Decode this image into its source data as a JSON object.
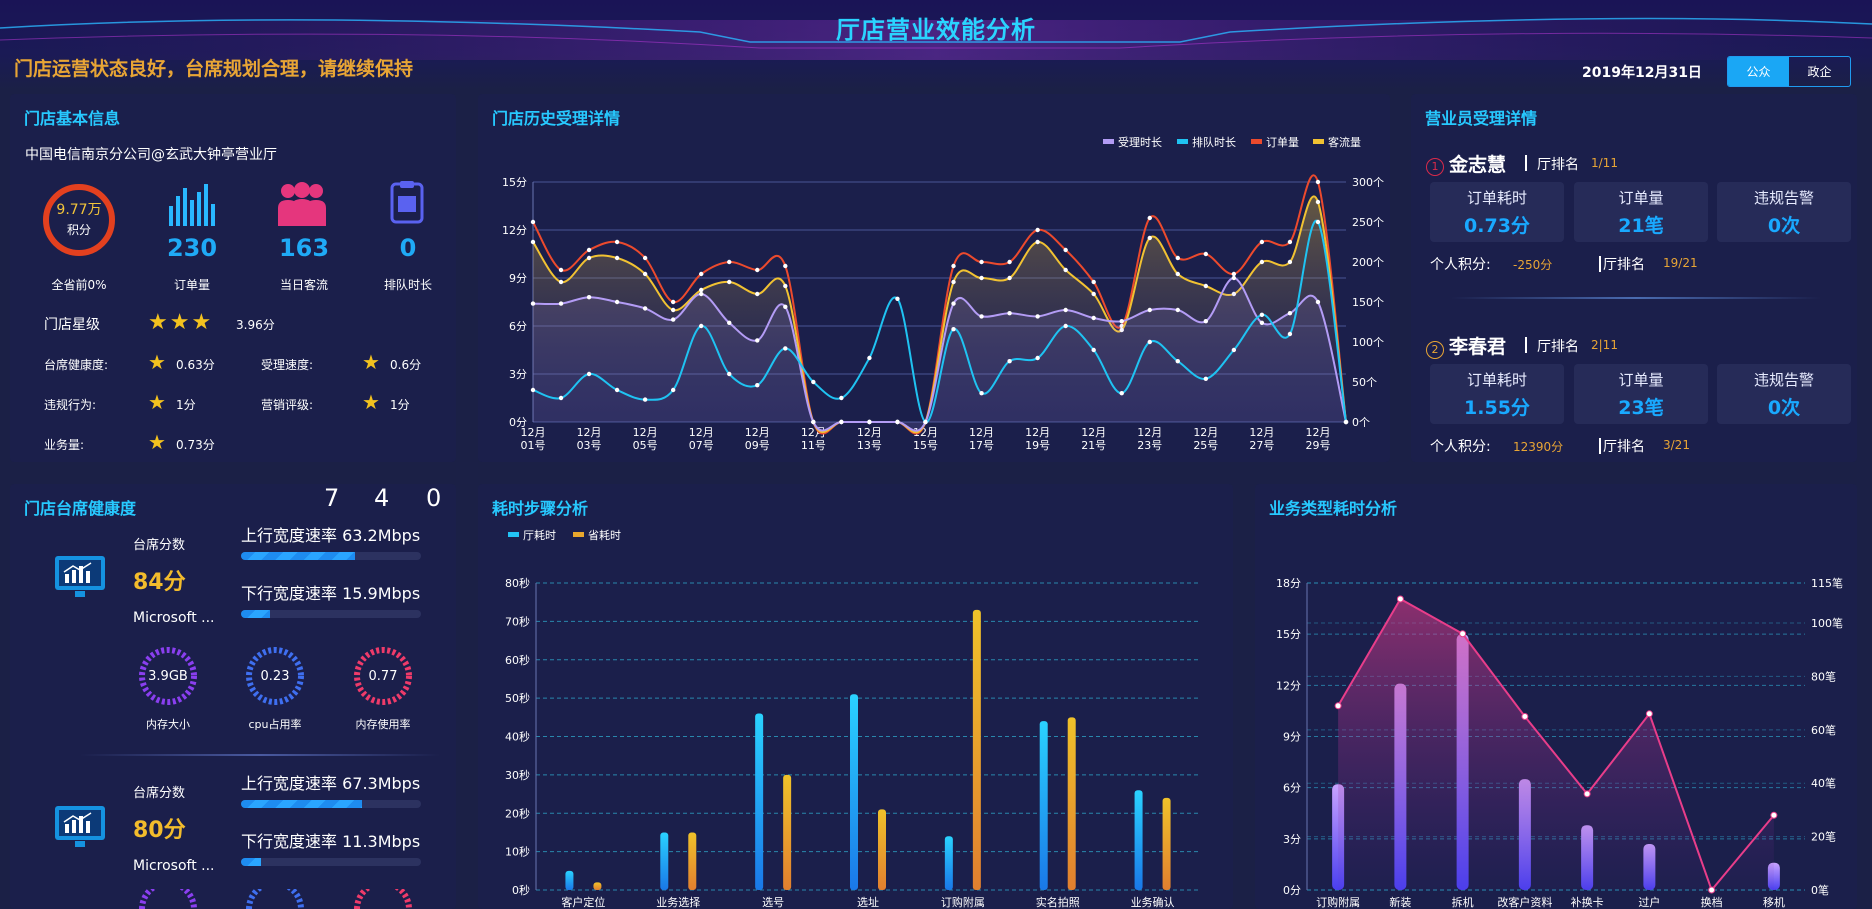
{
  "header": {
    "title": "厅店营业效能分析",
    "notice": "门店运营状态良好，台席规划合理，请继续保持",
    "date": "2019年12月31日",
    "toggle": [
      "公众",
      "政企"
    ],
    "colors": {
      "accent": "#27c9ff",
      "warning": "#e8a535"
    }
  },
  "basic": {
    "title": "门店基本信息",
    "store_name": "中国电信南京分公司@玄武大钟亭营业厅",
    "score": {
      "value": "9.77万",
      "unit": "积分",
      "caption": "全省前0%"
    },
    "stats": [
      {
        "value": "230",
        "label": "订单量",
        "icon": "bar-chart-icon"
      },
      {
        "value": "163",
        "label": "当日客流",
        "icon": "people-icon"
      },
      {
        "value": "0",
        "label": "排队时长",
        "icon": "queue-ticket-icon"
      }
    ],
    "star_label": "门店星级",
    "star_value": "3.96分",
    "stars": 3,
    "metrics": [
      {
        "label": "台席健康度:",
        "value": "0.63分",
        "fill": 0.63
      },
      {
        "label": "受理速度:",
        "value": "0.6分",
        "fill": 0.6
      },
      {
        "label": "违规行为:",
        "value": "1分",
        "fill": 1
      },
      {
        "label": "营销评级:",
        "value": "1分",
        "fill": 1
      },
      {
        "label": "业务量:",
        "value": "0.73分",
        "fill": 0.73
      }
    ]
  },
  "clerks": {
    "title": "营业员受理详情",
    "rank_label": "厅排名",
    "score_label": "个人积分:",
    "items": [
      {
        "index": "1",
        "name": "金志慧",
        "rank": "1/11",
        "tiles": [
          {
            "label": "订单耗时",
            "value": "0.73分"
          },
          {
            "label": "订单量",
            "value": "21笔"
          },
          {
            "label": "违规告警",
            "value": "0次"
          }
        ],
        "score": "-250分",
        "rank2": "19/21"
      },
      {
        "index": "2",
        "name": "李春君",
        "rank": "2|11",
        "tiles": [
          {
            "label": "订单耗时",
            "value": "1.55分"
          },
          {
            "label": "订单量",
            "value": "23笔"
          },
          {
            "label": "违规告警",
            "value": "0次"
          }
        ],
        "score": "12390分",
        "rank2": "3/21"
      }
    ]
  },
  "health": {
    "title": "门店台席健康度",
    "digits": [
      "7",
      "4",
      "0"
    ],
    "desks": [
      {
        "score_label": "台席分数",
        "score": "84分",
        "name": "Microsoft ...",
        "up": "上行宽度速率 63.2Mbps",
        "up_fill": 0.632,
        "down": "下行宽度速率 15.9Mbps",
        "down_fill": 0.159,
        "gauges": [
          {
            "value": "3.9GB",
            "label": "内存大小",
            "color": "#8a3ff0"
          },
          {
            "value": "0.23",
            "label": "cpu占用率",
            "color": "#3f6ff0"
          },
          {
            "value": "0.77",
            "label": "内存使用率",
            "color": "#ef3b6a"
          }
        ]
      },
      {
        "score_label": "台席分数",
        "score": "80分",
        "name": "Microsoft ...",
        "up": "上行宽度速率 67.3Mbps",
        "up_fill": 0.673,
        "down": "下行宽度速率 11.3Mbps",
        "down_fill": 0.113
      }
    ]
  },
  "chart_data": [
    {
      "type": "line",
      "title": "门店历史受理详情",
      "x": [
        "12月01号",
        "12月02号",
        "12月03号",
        "12月04号",
        "12月05号",
        "12月06号",
        "12月07号",
        "12月08号",
        "12月09号",
        "12月10号",
        "12月11号",
        "12月12号",
        "12月13号",
        "12月14号",
        "12月15号",
        "12月16号",
        "12月17号",
        "12月18号",
        "12月19号",
        "12月20号",
        "12月21号",
        "12月22号",
        "12月23号",
        "12月24号",
        "12月25号",
        "12月26号",
        "12月27号",
        "12月28号",
        "12月29号",
        "12月30号"
      ],
      "x_ticks": [
        "12月\n01号",
        "12月\n03号",
        "12月\n05号",
        "12月\n07号",
        "12月\n09号",
        "12月\n11号",
        "12月\n13号",
        "12月\n15号",
        "12月\n17号",
        "12月\n19号",
        "12月\n21号",
        "12月\n23号",
        "12月\n25号",
        "12月\n27号",
        "12月\n29号"
      ],
      "y_left_ticks": [
        "0分",
        "3分",
        "6分",
        "9分",
        "12分",
        "15分"
      ],
      "y_left_lim": [
        0,
        15
      ],
      "y_right_ticks": [
        "0个",
        "50个",
        "100个",
        "150个",
        "200个",
        "250个",
        "300个"
      ],
      "y_right_lim": [
        0,
        300
      ],
      "grid": true,
      "legend_position": "top-right",
      "series": [
        {
          "name": "受理时长",
          "axis": "left",
          "color": "#b39cf5",
          "values": [
            7.4,
            7.4,
            7.8,
            7.5,
            7.1,
            6.4,
            8,
            6.2,
            5.1,
            7.2,
            0,
            0,
            0,
            0,
            0,
            7.4,
            6.6,
            6.8,
            6.6,
            7,
            6.5,
            6.3,
            7,
            7,
            6.3,
            9,
            6.2,
            6.8,
            7.5,
            0
          ]
        },
        {
          "name": "排队时长",
          "axis": "left",
          "color": "#1fc3f2",
          "values": [
            2,
            1.5,
            3,
            2,
            1.4,
            2,
            6,
            3,
            2.3,
            4.6,
            2.5,
            1.5,
            4,
            7.7,
            0,
            5.8,
            1.8,
            3.8,
            4,
            6,
            4.5,
            1.8,
            5,
            3.8,
            2.7,
            4.5,
            6.7,
            5.5,
            12.5,
            0
          ]
        },
        {
          "name": "订单量",
          "axis": "right",
          "color": "#ec4a2d",
          "values": [
            250,
            190,
            215,
            225,
            205,
            150,
            185,
            200,
            190,
            195,
            0,
            0,
            0,
            0,
            0,
            195,
            200,
            200,
            240,
            215,
            175,
            120,
            255,
            205,
            210,
            185,
            225,
            225,
            300,
            0
          ]
        },
        {
          "name": "客流量",
          "axis": "right",
          "color": "#f1c232",
          "values": [
            225,
            175,
            205,
            205,
            185,
            140,
            165,
            175,
            160,
            170,
            0,
            0,
            0,
            0,
            0,
            175,
            180,
            180,
            225,
            190,
            160,
            115,
            230,
            185,
            170,
            160,
            200,
            200,
            275,
            0
          ]
        }
      ]
    },
    {
      "type": "bar",
      "title": "耗时步骤分析",
      "categories": [
        "客户定位",
        "业务选择",
        "选号",
        "选址",
        "订购附属",
        "实名拍照",
        "业务确认"
      ],
      "y_ticks": [
        "0秒",
        "10秒",
        "20秒",
        "30秒",
        "40秒",
        "50秒",
        "60秒",
        "70秒",
        "80秒"
      ],
      "ylim": [
        0,
        80
      ],
      "grid": true,
      "legend_position": "top-left",
      "series": [
        {
          "name": "厅耗时",
          "color": "#22c3f5",
          "values": [
            5,
            15,
            46,
            51,
            14,
            44,
            26
          ]
        },
        {
          "name": "省耗时",
          "color": "#e8a72d",
          "values": [
            2,
            15,
            30,
            21,
            73,
            45,
            24
          ]
        }
      ]
    },
    {
      "type": "bar",
      "title": "业务类型耗时分析",
      "categories": [
        "订购附属",
        "新装",
        "拆机",
        "改客户资料",
        "补换卡",
        "过户",
        "换档",
        "移机"
      ],
      "y_left_ticks": [
        "0分",
        "3分",
        "6分",
        "9分",
        "12分",
        "15分",
        "18分"
      ],
      "y_left_lim": [
        0,
        18
      ],
      "y_right_ticks": [
        "0笔",
        "20笔",
        "40笔",
        "60笔",
        "80笔",
        "100笔",
        "115笔"
      ],
      "y_right_lim": [
        0,
        115
      ],
      "grid": true,
      "bars": {
        "axis": "left",
        "values": [
          6.2,
          12.1,
          15,
          6.5,
          3.8,
          2.7,
          0,
          1.6
        ]
      },
      "line": {
        "axis": "right",
        "color": "#e83d8a",
        "values": [
          69,
          109,
          96,
          65,
          36,
          66,
          0,
          28
        ]
      }
    }
  ]
}
